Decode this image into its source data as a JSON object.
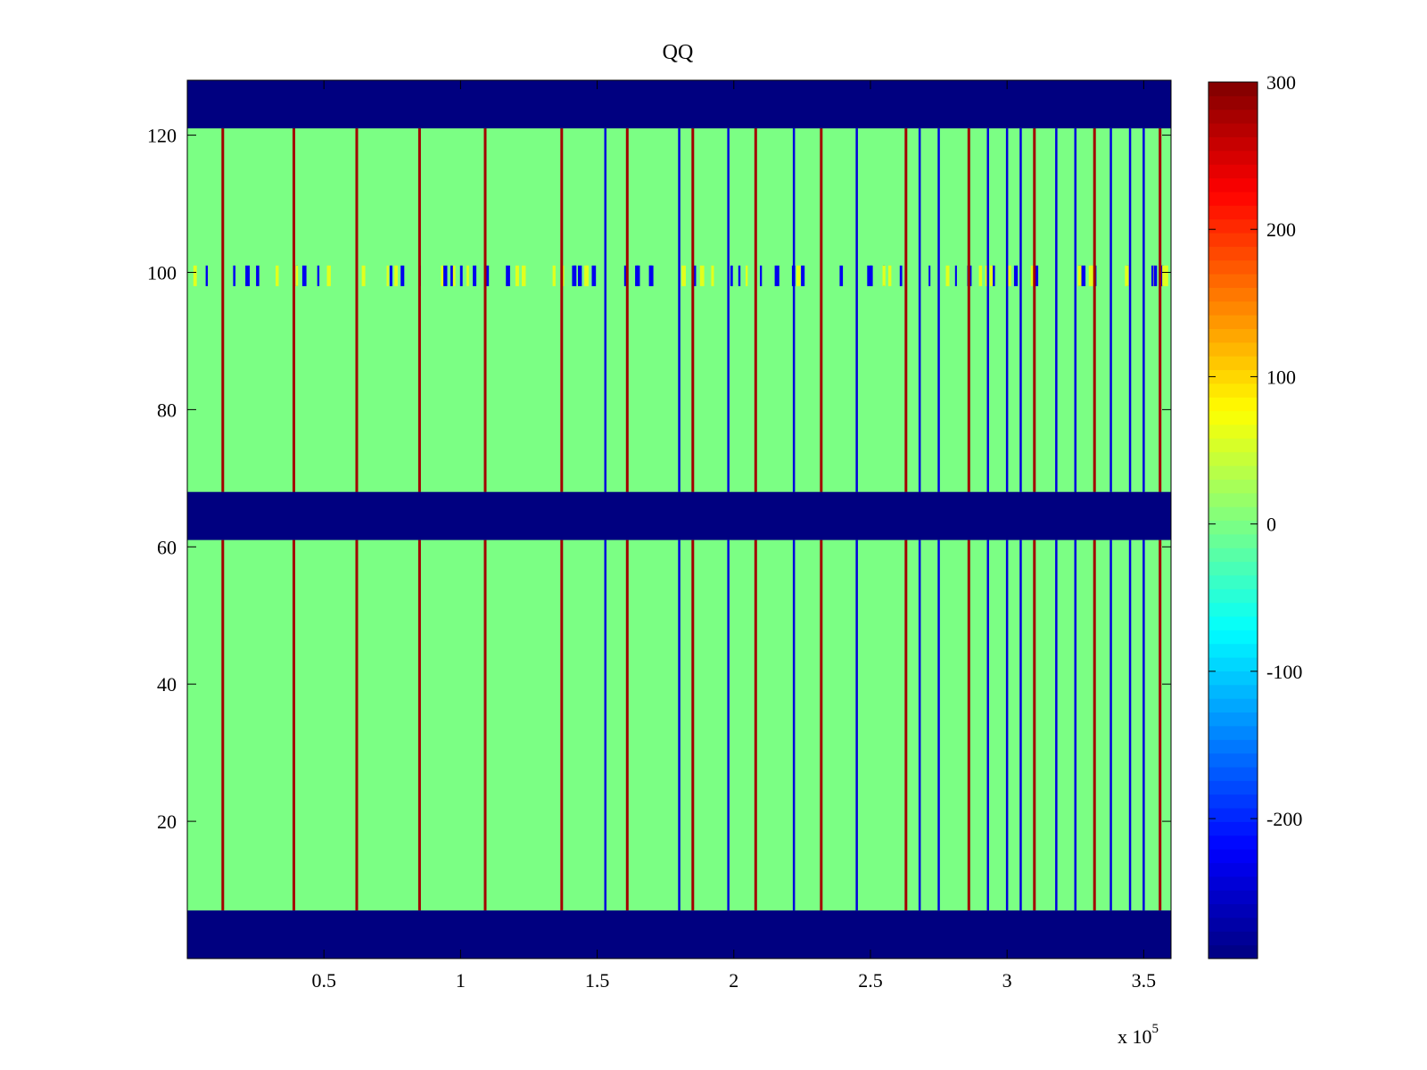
{
  "chart_data": {
    "type": "heatmap",
    "title": "QQ",
    "xlabel": "",
    "ylabel": "",
    "xlim": [
      0,
      360000
    ],
    "ylim": [
      0,
      128
    ],
    "x_ticks": [
      0.5,
      1,
      1.5,
      2,
      2.5,
      3,
      3.5
    ],
    "x_tick_labels": [
      "0.5",
      "1",
      "1.5",
      "2",
      "2.5",
      "3",
      "3.5"
    ],
    "x_exponent_label": "x 10",
    "x_exponent_power": "5",
    "y_ticks": [
      20,
      40,
      60,
      80,
      100,
      120
    ],
    "y_tick_labels": [
      "20",
      "40",
      "60",
      "80",
      "100",
      "120"
    ],
    "colormap": "jet",
    "color_range": [
      -295,
      300
    ],
    "colorbar_ticks": [
      -200,
      -100,
      0,
      100,
      200,
      300
    ],
    "colorbar_tick_labels": [
      "-200",
      "-100",
      "0",
      "100",
      "200",
      "300"
    ],
    "colorbar_position": "right",
    "background_value": 0,
    "empty_bands_rows": [
      [
        0,
        7
      ],
      [
        61,
        68
      ],
      [
        121,
        128
      ]
    ],
    "empty_band_value": -295,
    "high_stripes_x": [
      13000,
      39000,
      62000,
      85000,
      109000,
      137000,
      161000,
      185000,
      208000,
      232000,
      263000,
      286000,
      310000,
      332000,
      356000
    ],
    "high_stripe_value": 280,
    "low_stripes_x": [
      153000,
      180000,
      198000,
      222000,
      245000,
      268000,
      275000,
      293000,
      300000,
      305000,
      318000,
      325000,
      338000,
      345000,
      350000
    ],
    "low_stripe_value": -240,
    "noisy_row_band": [
      98,
      101
    ],
    "grid": false
  }
}
